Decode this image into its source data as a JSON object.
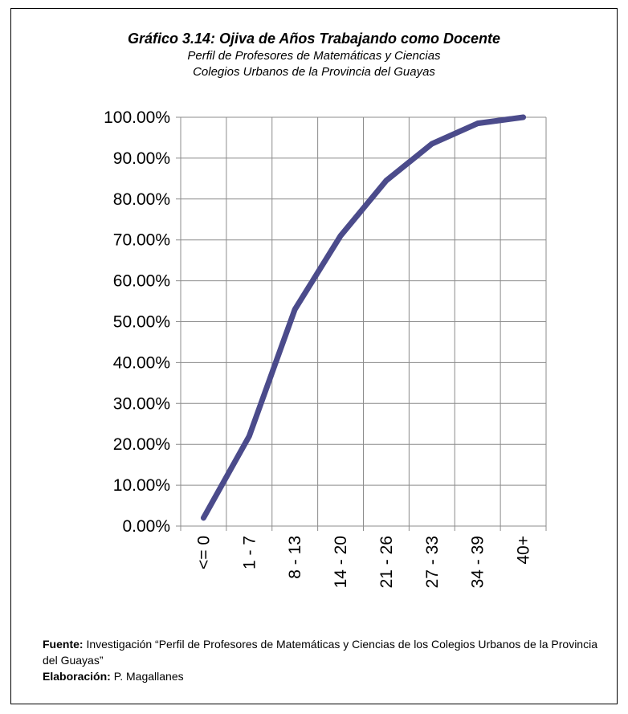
{
  "title": "Gráfico 3.14: Ojiva de Años Trabajando como Docente",
  "subtitle_line1": "Perfil de Profesores de Matemáticas y Ciencias",
  "subtitle_line2": "Colegios Urbanos de la Provincia del Guayas",
  "chart_data": {
    "type": "line",
    "title": "Gráfico 3.14: Ojiva de Años Trabajando como Docente",
    "categories": [
      "<= 0",
      "1 - 7",
      "8 - 13",
      "14 - 20",
      "21 - 26",
      "27 - 33",
      "34 - 39",
      "40+"
    ],
    "values": [
      0.02,
      0.22,
      0.53,
      0.71,
      0.845,
      0.935,
      0.985,
      1.0
    ],
    "yticks": [
      "0.00%",
      "10.00%",
      "20.00%",
      "30.00%",
      "40.00%",
      "50.00%",
      "60.00%",
      "70.00%",
      "80.00%",
      "90.00%",
      "100.00%"
    ],
    "ylim": [
      0,
      1
    ],
    "grid": true,
    "line_color": "#4b4b8b"
  },
  "footer": {
    "source_label": "Fuente:",
    "source_text": "Investigación “Perfil de Profesores de Matemáticas y Ciencias de los Colegios Urbanos de la Provincia del Guayas”",
    "author_label": "Elaboración:",
    "author_text": "P. Magallanes"
  }
}
